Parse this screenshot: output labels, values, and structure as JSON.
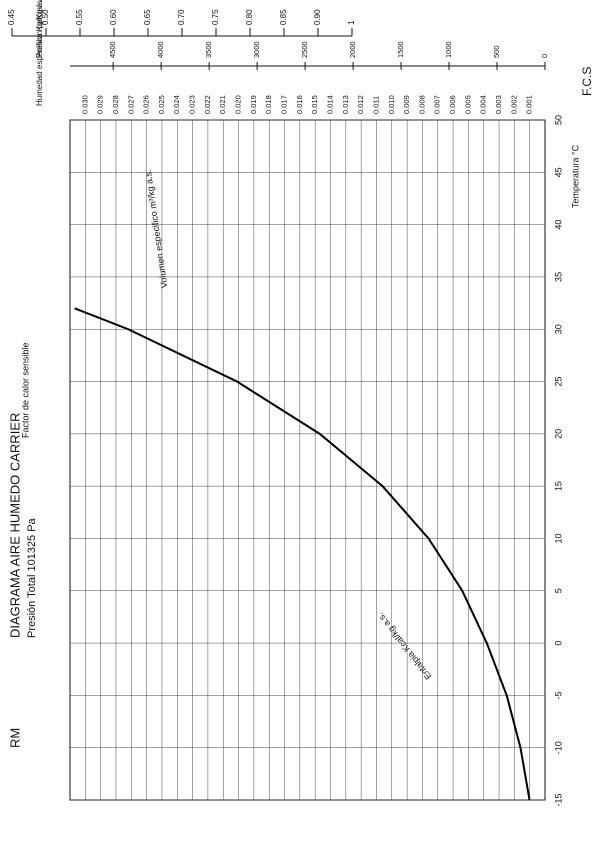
{
  "title": "DIAGRAMA AIRE HUMEDO CARRIER",
  "subtitle": "Presión Total 101325 Pa",
  "logo": "RM",
  "chart_data": {
    "type": "psychrometric",
    "xlabel": "Temperatura °C",
    "ylabel": "Humedad especifica Kg/Kg a.s.",
    "y2label": "Presion parcial vapor Pa",
    "annotations": [
      "Volumen especifico m³/kg a.s.",
      "Entalpia Kcal/kg a.s.",
      "Factor de calor sensible",
      "F.C.S"
    ],
    "xlim": [
      -15,
      50
    ],
    "xticks": [
      -15,
      -10,
      -5,
      0,
      5,
      10,
      15,
      20,
      25,
      30,
      35,
      40,
      45,
      50
    ],
    "ylim": [
      0,
      0.031
    ],
    "yticks": [
      0.001,
      0.002,
      0.003,
      0.004,
      0.005,
      0.006,
      0.007,
      0.008,
      0.009,
      {
        "value": 0.01,
        "label": "0.010"
      },
      0.011,
      0.012,
      0.013,
      0.014,
      0.015,
      0.016,
      0.017,
      0.018,
      0.019,
      {
        "value": 0.02,
        "label": "0.020"
      },
      0.021,
      0.022,
      0.023,
      0.024,
      0.025,
      0.026,
      0.027,
      0.028,
      0.029,
      {
        "value": 0.03,
        "label": "0.030"
      }
    ],
    "y2lim": [
      0,
      4950
    ],
    "y2ticks": [
      0,
      500,
      1000,
      1500,
      2000,
      2500,
      3000,
      3500,
      4000,
      4500
    ],
    "fcs_scale": [
      "0.45",
      "0.50",
      "0.55",
      "0.60",
      "0.65",
      "0.70",
      "0.75",
      "0.80",
      "0.85",
      "0.90",
      "1"
    ],
    "saturation": {
      "x": [
        -15,
        -10,
        -5,
        0,
        5,
        10,
        15,
        20,
        25,
        30,
        32
      ],
      "values": [
        0.00101,
        0.0016,
        0.0025,
        0.0038,
        0.0054,
        0.0076,
        0.0106,
        0.0147,
        0.0201,
        0.0272,
        0.0307
      ]
    },
    "grid": true
  }
}
